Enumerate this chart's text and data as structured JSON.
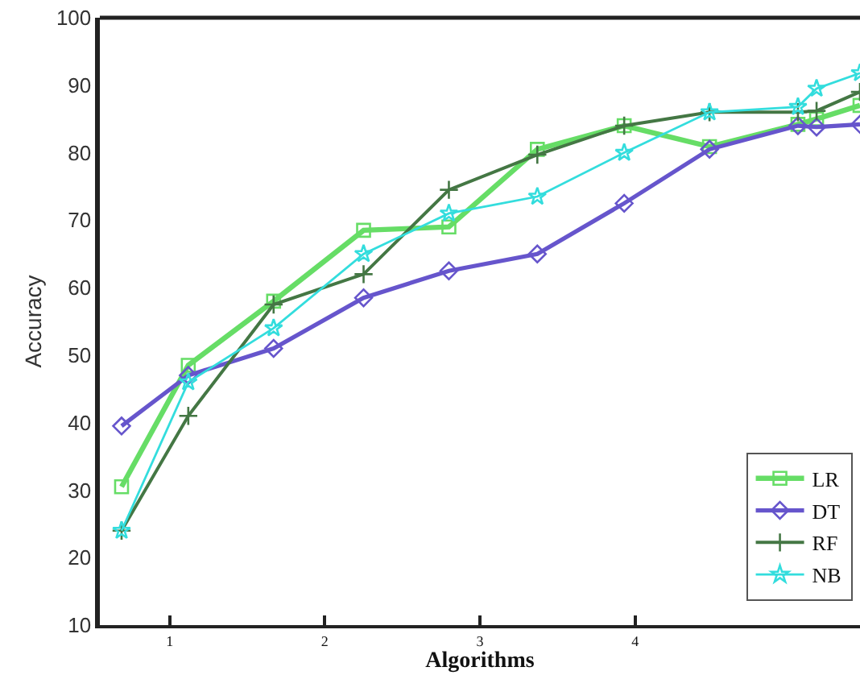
{
  "chart_data": {
    "type": "line",
    "xlabel": "Algorithms",
    "ylabel": "Accuracy",
    "xlim": [
      0.55,
      5.45
    ],
    "xticks": [
      1,
      2,
      3,
      4
    ],
    "ylim": [
      10,
      100
    ],
    "yticks": [
      10,
      20,
      30,
      40,
      50,
      60,
      70,
      80,
      90,
      100
    ],
    "grid": false,
    "legend": "bottom right",
    "x": [
      0.69,
      1.12,
      1.67,
      2.25,
      2.8,
      3.37,
      3.93,
      4.48,
      5.05,
      5.17,
      5.45
    ],
    "series": [
      {
        "name": "LR",
        "color": "#66dd66",
        "marker": "square",
        "values": [
          30.5,
          48.5,
          58,
          68.5,
          69,
          80.5,
          84,
          80.9,
          84.2,
          85,
          87
        ]
      },
      {
        "name": "DT",
        "color": "#6655cc",
        "marker": "diamond",
        "values": [
          39.5,
          47,
          51,
          58.5,
          62.5,
          65,
          72.5,
          80.5,
          84,
          83.8,
          84.2
        ]
      },
      {
        "name": "RF",
        "color": "#447744",
        "marker": "cross",
        "values": [
          24,
          41,
          57.5,
          62,
          74.5,
          79.7,
          84,
          86,
          86,
          86.2,
          89
        ]
      },
      {
        "name": "NB",
        "color": "#33dddd",
        "marker": "star",
        "values": [
          24,
          46,
          54,
          65,
          71,
          73.5,
          80,
          86,
          86.8,
          89.5,
          91.8
        ]
      }
    ]
  }
}
